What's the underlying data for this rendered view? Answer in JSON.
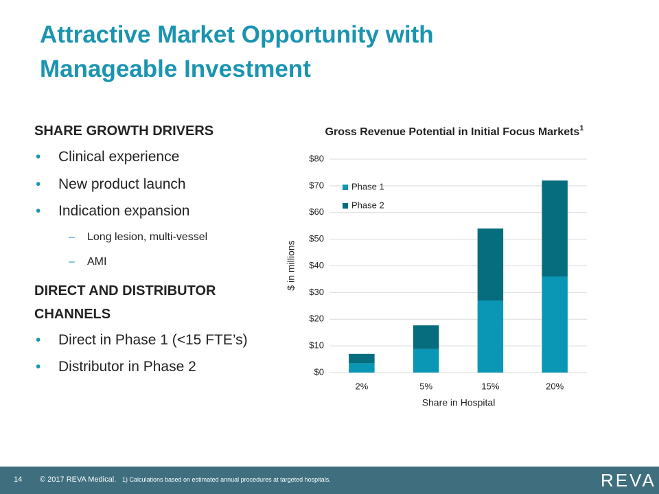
{
  "slide": {
    "title": "Attractive Market Opportunity with Manageable Investment",
    "sections": [
      {
        "heading": "SHARE GROWTH DRIVERS",
        "items": [
          "Clinical experience",
          "New product launch",
          "Indication expansion"
        ],
        "subitems": [
          "Long lesion, multi-vessel",
          "AMI"
        ]
      },
      {
        "heading": "DIRECT AND DISTRIBUTOR CHANNELS",
        "items": [
          "Direct in Phase 1 (<15 FTE’s)",
          "Distributor in Phase 2"
        ]
      }
    ],
    "footer": {
      "page": "14",
      "copyright": "© 2017 REVA Medical.",
      "note": "1) Calculations based on estimated annual procedures at targeted hospitals.",
      "logo": "REVA"
    }
  },
  "chart_data": {
    "type": "stacked-bar",
    "title": "Gross Revenue Potential in Initial Focus Markets",
    "title_note": "1",
    "x_label": "Share in Hospital",
    "y_label": "$ in millions",
    "categories": [
      "2%",
      "5%",
      "15%",
      "20%"
    ],
    "series": [
      {
        "name": "Phase 1",
        "color": "#0a96b5",
        "values": [
          3.5,
          8.8,
          27,
          36
        ]
      },
      {
        "name": "Phase 2",
        "color": "#066d7e",
        "values": [
          3.5,
          8.9,
          27,
          36
        ]
      }
    ],
    "ylim": [
      0,
      80
    ],
    "yticks": [
      {
        "value": 0,
        "label": "$0"
      },
      {
        "value": 10,
        "label": "$10"
      },
      {
        "value": 20,
        "label": "$20"
      },
      {
        "value": 30,
        "label": "$30"
      },
      {
        "value": 40,
        "label": "$40"
      },
      {
        "value": 50,
        "label": "$50"
      },
      {
        "value": 60,
        "label": "$60"
      },
      {
        "value": 70,
        "label": "$70"
      },
      {
        "value": 80,
        "label": "$80"
      }
    ],
    "grid": true,
    "legend": "top-left"
  }
}
